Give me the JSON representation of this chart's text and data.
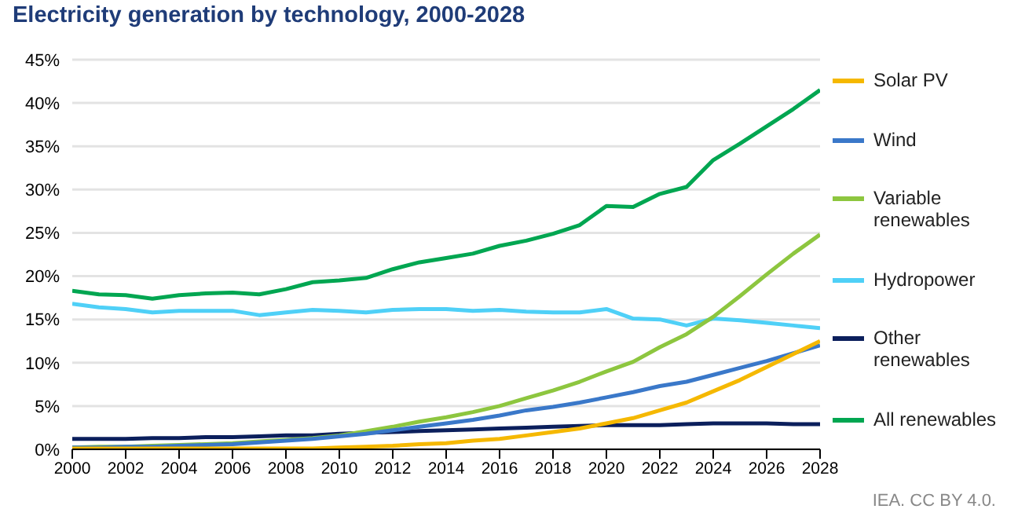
{
  "chart_data": {
    "type": "line",
    "title": "Electricity generation by technology, 2000-2028",
    "x": [
      2000,
      2001,
      2002,
      2003,
      2004,
      2005,
      2006,
      2007,
      2008,
      2009,
      2010,
      2011,
      2012,
      2013,
      2014,
      2015,
      2016,
      2017,
      2018,
      2019,
      2020,
      2021,
      2022,
      2023,
      2024,
      2025,
      2026,
      2027,
      2028
    ],
    "series": [
      {
        "name": "Solar PV",
        "color": "#f5b800",
        "values": [
          0.1,
          0.1,
          0.1,
          0.1,
          0.1,
          0.1,
          0.1,
          0.1,
          0.1,
          0.1,
          0.2,
          0.3,
          0.4,
          0.6,
          0.7,
          1.0,
          1.2,
          1.6,
          2.0,
          2.4,
          3.0,
          3.6,
          4.5,
          5.4,
          6.7,
          8.0,
          9.5,
          11.0,
          12.5
        ]
      },
      {
        "name": "Wind",
        "color": "#3a78c9",
        "values": [
          0.2,
          0.2,
          0.3,
          0.3,
          0.4,
          0.5,
          0.6,
          0.8,
          1.0,
          1.2,
          1.5,
          1.8,
          2.2,
          2.6,
          3.0,
          3.4,
          3.9,
          4.5,
          4.9,
          5.4,
          6.0,
          6.6,
          7.3,
          7.8,
          8.6,
          9.4,
          10.2,
          11.1,
          12.0
        ]
      },
      {
        "name": "Variable renewables",
        "color": "#8dc63f",
        "values": [
          0.2,
          0.3,
          0.3,
          0.4,
          0.5,
          0.6,
          0.7,
          0.9,
          1.1,
          1.3,
          1.6,
          2.1,
          2.6,
          3.2,
          3.7,
          4.3,
          5.0,
          5.9,
          6.8,
          7.8,
          9.0,
          10.1,
          11.8,
          13.3,
          15.3,
          17.7,
          20.2,
          22.6,
          24.8
        ]
      },
      {
        "name": "Hydropower",
        "color": "#4fd0f7",
        "values": [
          16.8,
          16.4,
          16.2,
          15.8,
          16.0,
          16.0,
          16.0,
          15.5,
          15.8,
          16.1,
          16.0,
          15.8,
          16.1,
          16.2,
          16.2,
          16.0,
          16.1,
          15.9,
          15.8,
          15.8,
          16.2,
          15.1,
          15.0,
          14.3,
          15.1,
          14.9,
          14.6,
          14.3,
          14.0
        ]
      },
      {
        "name": "Other renewables",
        "color": "#0b1f5c",
        "values": [
          1.2,
          1.2,
          1.2,
          1.3,
          1.3,
          1.4,
          1.4,
          1.5,
          1.6,
          1.6,
          1.8,
          1.9,
          2.0,
          2.1,
          2.2,
          2.3,
          2.4,
          2.5,
          2.6,
          2.7,
          2.8,
          2.8,
          2.8,
          2.9,
          3.0,
          3.0,
          3.0,
          2.9,
          2.9
        ]
      },
      {
        "name": "All renewables",
        "color": "#00a651",
        "values": [
          18.3,
          17.9,
          17.8,
          17.4,
          17.8,
          18.0,
          18.1,
          17.9,
          18.5,
          19.3,
          19.5,
          19.8,
          20.8,
          21.6,
          22.1,
          22.6,
          23.5,
          24.1,
          24.9,
          25.9,
          28.1,
          28.0,
          29.5,
          30.3,
          33.4,
          35.3,
          37.3,
          39.3,
          41.5
        ]
      }
    ],
    "xlim": [
      2000,
      2028
    ],
    "xticks": [
      2000,
      2002,
      2004,
      2006,
      2008,
      2010,
      2012,
      2014,
      2016,
      2018,
      2020,
      2022,
      2024,
      2026,
      2028
    ],
    "ylim": [
      0,
      45
    ],
    "yticks": [
      {
        "value": 0,
        "label": "0%"
      },
      {
        "value": 5,
        "label": "5%"
      },
      {
        "value": 10,
        "label": "10%"
      },
      {
        "value": 15,
        "label": "15%"
      },
      {
        "value": 20,
        "label": "20%"
      },
      {
        "value": 25,
        "label": "25%"
      },
      {
        "value": 30,
        "label": "30%"
      },
      {
        "value": 35,
        "label": "35%"
      },
      {
        "value": 40,
        "label": "40%"
      },
      {
        "value": 45,
        "label": "45%"
      }
    ],
    "grid": "y",
    "legend": "right",
    "marker": "none",
    "line_style": "solid",
    "annotations": [
      "IEA. CC BY 4.0."
    ]
  }
}
